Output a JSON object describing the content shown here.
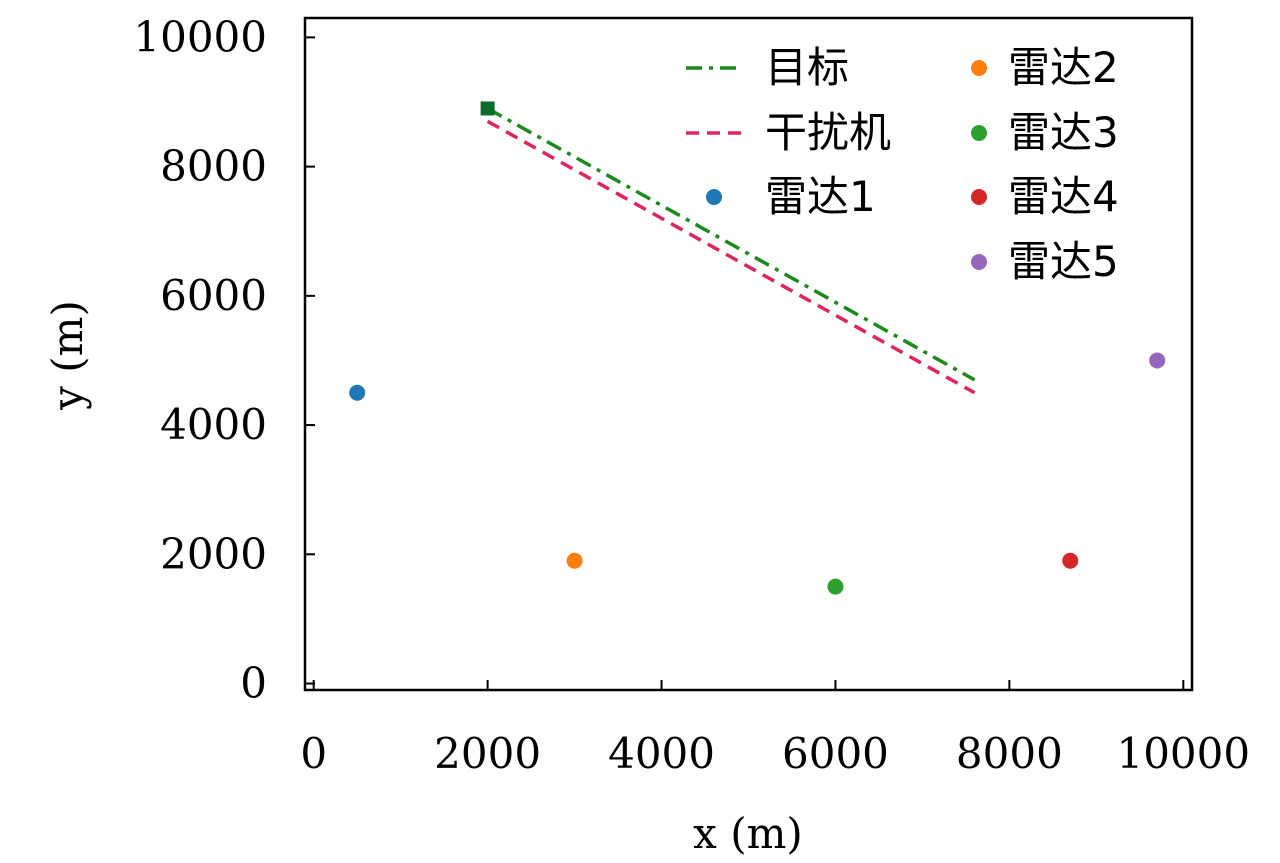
{
  "chart_data": {
    "type": "scatter",
    "title": "",
    "xlabel": "x (m)",
    "ylabel": "y (m)",
    "xlim": [
      -100,
      10100
    ],
    "ylim": [
      -100,
      10300
    ],
    "x_ticks": [
      0,
      2000,
      4000,
      6000,
      8000,
      10000
    ],
    "y_ticks": [
      0,
      2000,
      4000,
      6000,
      8000,
      10000
    ],
    "x_tick_labels": [
      "0",
      "2000",
      "4000",
      "6000",
      "8000",
      "10000"
    ],
    "y_tick_labels": [
      "0",
      "2000",
      "4000",
      "6000",
      "8000",
      "10000"
    ],
    "grid": false,
    "legend_position": "top-right",
    "lines": [
      {
        "name": "目标",
        "style": "dash-dot",
        "color": "#1a8a1a",
        "x": [
          2000,
          7600
        ],
        "y": [
          8900,
          4700
        ]
      },
      {
        "name": "干扰机",
        "style": "dashed",
        "color": "#e0245e",
        "x": [
          2000,
          7600
        ],
        "y": [
          8700,
          4500
        ]
      }
    ],
    "start_marker": {
      "x": 2000,
      "y": 8900,
      "shape": "square",
      "color": "#0b6b2b"
    },
    "points": [
      {
        "name": "雷达1",
        "x": 500,
        "y": 4500,
        "color": "#1f77b4"
      },
      {
        "name": "雷达2",
        "x": 3000,
        "y": 1900,
        "color": "#ff7f0e"
      },
      {
        "name": "雷达3",
        "x": 6000,
        "y": 1500,
        "color": "#2ca02c"
      },
      {
        "name": "雷达4",
        "x": 8700,
        "y": 1900,
        "color": "#d62728"
      },
      {
        "name": "雷达5",
        "x": 9700,
        "y": 5000,
        "color": "#9467bd"
      }
    ]
  }
}
